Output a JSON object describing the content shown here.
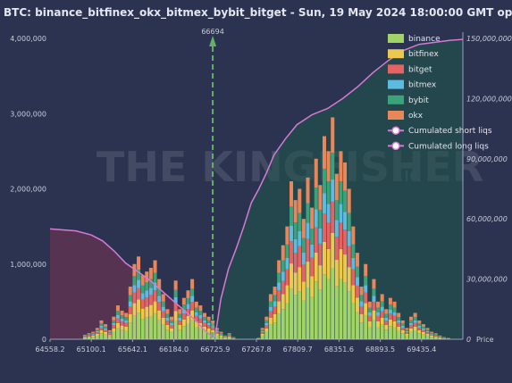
{
  "title": "BTC: binance_bitfinex_okx_bitmex_bybit_bitget - Sun, 19 May 2024 18:00:00 GMT optical_opti",
  "watermark": {
    "brand": "THE KINGFISHER",
    "suffix": ".io"
  },
  "colors": {
    "background": "#2b3350",
    "binance": "#a0d468",
    "bitfinex": "#ecc84e",
    "bitget": "#e56363",
    "bitmex": "#5ebbe0",
    "bybit": "#3aa37a",
    "okx": "#e8875a",
    "cum_line": "#d67ad6",
    "marker": "#66b06a"
  },
  "chart_data": {
    "type": "bar",
    "title": "BTC: binance_bitfinex_okx_bitmex_bybit_bitget - Sun, 19 May 2024 18:00:00 GMT optical_opti",
    "xlabel": "Price",
    "ylabel": "",
    "x_ticks": [
      "64558.2",
      "65100.1",
      "65642.1",
      "66184.0",
      "66725.9",
      "67267.8",
      "67809.7",
      "68351.6",
      "68893.5",
      "69435.4"
    ],
    "xlim": [
      64558.2,
      69977.3
    ],
    "y_left_ticks": [
      "0",
      "1,000,000",
      "2,000,000",
      "3,000,000",
      "4,000,000"
    ],
    "ylim_left": [
      0,
      4000000
    ],
    "y_right_ticks": [
      "0",
      "30,000,000",
      "60,000,000",
      "90,000,000",
      "120,000,000",
      "150,000,000"
    ],
    "ylim_right": [
      0,
      150000000
    ],
    "current_price": {
      "label": "66694",
      "value": 66694
    },
    "series_names": [
      "binance",
      "bitfinex",
      "bitget",
      "bitmex",
      "bybit",
      "okx"
    ],
    "legend": [
      {
        "label": "binance",
        "key": "binance"
      },
      {
        "label": "bitfinex",
        "key": "bitfinex"
      },
      {
        "label": "bitget",
        "key": "bitget"
      },
      {
        "label": "bitmex",
        "key": "bitmex"
      },
      {
        "label": "bybit",
        "key": "bybit"
      },
      {
        "label": "okx",
        "key": "okx"
      },
      {
        "label": "Cumulated short liqs",
        "key": "cum_short"
      },
      {
        "label": "Cumulated long liqs",
        "key": "cum_long"
      }
    ],
    "legend_position": "top-right",
    "cumulated_long": {
      "x": [
        64558,
        64900,
        65100,
        65250,
        65400,
        65550,
        65700,
        65850,
        66000,
        66150,
        66300,
        66450,
        66600,
        66690
      ],
      "y": [
        55000000,
        54000000,
        52000000,
        49000000,
        44000000,
        38000000,
        34000000,
        30000000,
        25000000,
        20000000,
        15000000,
        10000000,
        4000000,
        1000000
      ]
    },
    "cumulated_short": {
      "x": [
        66725,
        66800,
        66900,
        67000,
        67100,
        67200,
        67300,
        67400,
        67500,
        67650,
        67800,
        68000,
        68200,
        68400,
        68600,
        68800,
        69000,
        69200,
        69400,
        69600,
        69800,
        69977
      ],
      "y": [
        1000000,
        20000000,
        35000000,
        45000000,
        56000000,
        68000000,
        75000000,
        83000000,
        92000000,
        100000000,
        107000000,
        112000000,
        115000000,
        120000000,
        126000000,
        133000000,
        139000000,
        144000000,
        147000000,
        148000000,
        149000000,
        149500000
      ]
    },
    "bins": {
      "start": 64558.2,
      "step": 54.2,
      "totals": [
        0,
        0,
        0,
        0,
        0,
        0,
        0,
        0,
        60000,
        80000,
        100000,
        150000,
        250000,
        200000,
        120000,
        300000,
        450000,
        380000,
        350000,
        700000,
        1000000,
        1100000,
        850000,
        900000,
        950000,
        1050000,
        800000,
        600000,
        400000,
        300000,
        780000,
        400000,
        550000,
        650000,
        800000,
        500000,
        450000,
        350000,
        300000,
        250000,
        150000,
        100000,
        50000,
        80000,
        30000,
        0,
        0,
        0,
        0,
        0,
        20000,
        150000,
        300000,
        600000,
        700000,
        1050000,
        1250000,
        1500000,
        2100000,
        1850000,
        2000000,
        1600000,
        2150000,
        1750000,
        2400000,
        2050000,
        2700000,
        2500000,
        2950000,
        2200000,
        2500000,
        2350000,
        2000000,
        1500000,
        1150000,
        700000,
        1000000,
        500000,
        800000,
        500000,
        600000,
        400000,
        550000,
        500000,
        350000,
        250000,
        150000,
        300000,
        350000,
        250000,
        200000,
        150000,
        100000,
        80000,
        50000,
        30000,
        20000,
        0,
        0,
        0,
        0
      ],
      "mix": [
        0.32,
        0.16,
        0.14,
        0.1,
        0.12,
        0.16
      ]
    }
  }
}
